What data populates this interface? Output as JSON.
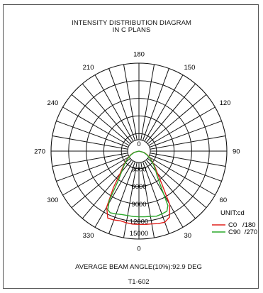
{
  "chart_data": {
    "type": "polar",
    "title": "INTENSITY DISTRIBUTION DIAGRAM",
    "subtitle": "IN C PLANS",
    "unit_label": "UNIT:cd",
    "angle_labels": [
      "180",
      "150",
      "120",
      "90",
      "60",
      "30",
      "0",
      "330",
      "300",
      "270",
      "240",
      "210"
    ],
    "radial_labels": [
      "0",
      "3000",
      "6000",
      "9000",
      "12000",
      "15000"
    ],
    "radial_range": [
      0,
      15000
    ],
    "series": [
      {
        "name": "C0   /180",
        "color": "#e0201b",
        "points": [
          {
            "angle": 0,
            "value": 12500
          },
          {
            "angle": 5,
            "value": 12550
          },
          {
            "angle": 10,
            "value": 12600
          },
          {
            "angle": 15,
            "value": 12800
          },
          {
            "angle": 20,
            "value": 12900
          },
          {
            "angle": 25,
            "value": 12400
          },
          {
            "angle": 30,
            "value": 10500
          },
          {
            "angle": 35,
            "value": 6800
          },
          {
            "angle": 40,
            "value": 4900
          },
          {
            "angle": 45,
            "value": 3900
          },
          {
            "angle": 55,
            "value": 2600
          },
          {
            "angle": 65,
            "value": 1600
          },
          {
            "angle": 75,
            "value": 900
          },
          {
            "angle": 90,
            "value": 0
          },
          {
            "angle": 270,
            "value": 0
          },
          {
            "angle": 285,
            "value": 900
          },
          {
            "angle": 295,
            "value": 1600
          },
          {
            "angle": 305,
            "value": 2600
          },
          {
            "angle": 315,
            "value": 3900
          },
          {
            "angle": 320,
            "value": 5000
          },
          {
            "angle": 325,
            "value": 7600
          },
          {
            "angle": 330,
            "value": 11000
          },
          {
            "angle": 335,
            "value": 12600
          },
          {
            "angle": 340,
            "value": 12500
          },
          {
            "angle": 345,
            "value": 12300
          },
          {
            "angle": 350,
            "value": 12400
          },
          {
            "angle": 355,
            "value": 12500
          }
        ]
      },
      {
        "name": "C90  /270",
        "color": "#2aa82a",
        "points": [
          {
            "angle": 0,
            "value": 11200
          },
          {
            "angle": 5,
            "value": 11250
          },
          {
            "angle": 10,
            "value": 11300
          },
          {
            "angle": 15,
            "value": 11500
          },
          {
            "angle": 20,
            "value": 11400
          },
          {
            "angle": 25,
            "value": 11300
          },
          {
            "angle": 28,
            "value": 10500
          },
          {
            "angle": 32,
            "value": 7000
          },
          {
            "angle": 36,
            "value": 5300
          },
          {
            "angle": 40,
            "value": 4500
          },
          {
            "angle": 45,
            "value": 3700
          },
          {
            "angle": 55,
            "value": 2500
          },
          {
            "angle": 65,
            "value": 1500
          },
          {
            "angle": 75,
            "value": 800
          },
          {
            "angle": 90,
            "value": 0
          },
          {
            "angle": 270,
            "value": 0
          },
          {
            "angle": 285,
            "value": 800
          },
          {
            "angle": 295,
            "value": 1500
          },
          {
            "angle": 305,
            "value": 2500
          },
          {
            "angle": 315,
            "value": 3700
          },
          {
            "angle": 320,
            "value": 4600
          },
          {
            "angle": 325,
            "value": 6200
          },
          {
            "angle": 329,
            "value": 9800
          },
          {
            "angle": 332,
            "value": 11300
          },
          {
            "angle": 335,
            "value": 11600
          },
          {
            "angle": 340,
            "value": 11400
          },
          {
            "angle": 345,
            "value": 11200
          },
          {
            "angle": 350,
            "value": 11150
          },
          {
            "angle": 355,
            "value": 11200
          }
        ]
      }
    ],
    "legend_position": "right"
  },
  "footer": {
    "beam_angle": "AVERAGE BEAM ANGLE(10%):92.9 DEG",
    "code": "T1-602"
  }
}
